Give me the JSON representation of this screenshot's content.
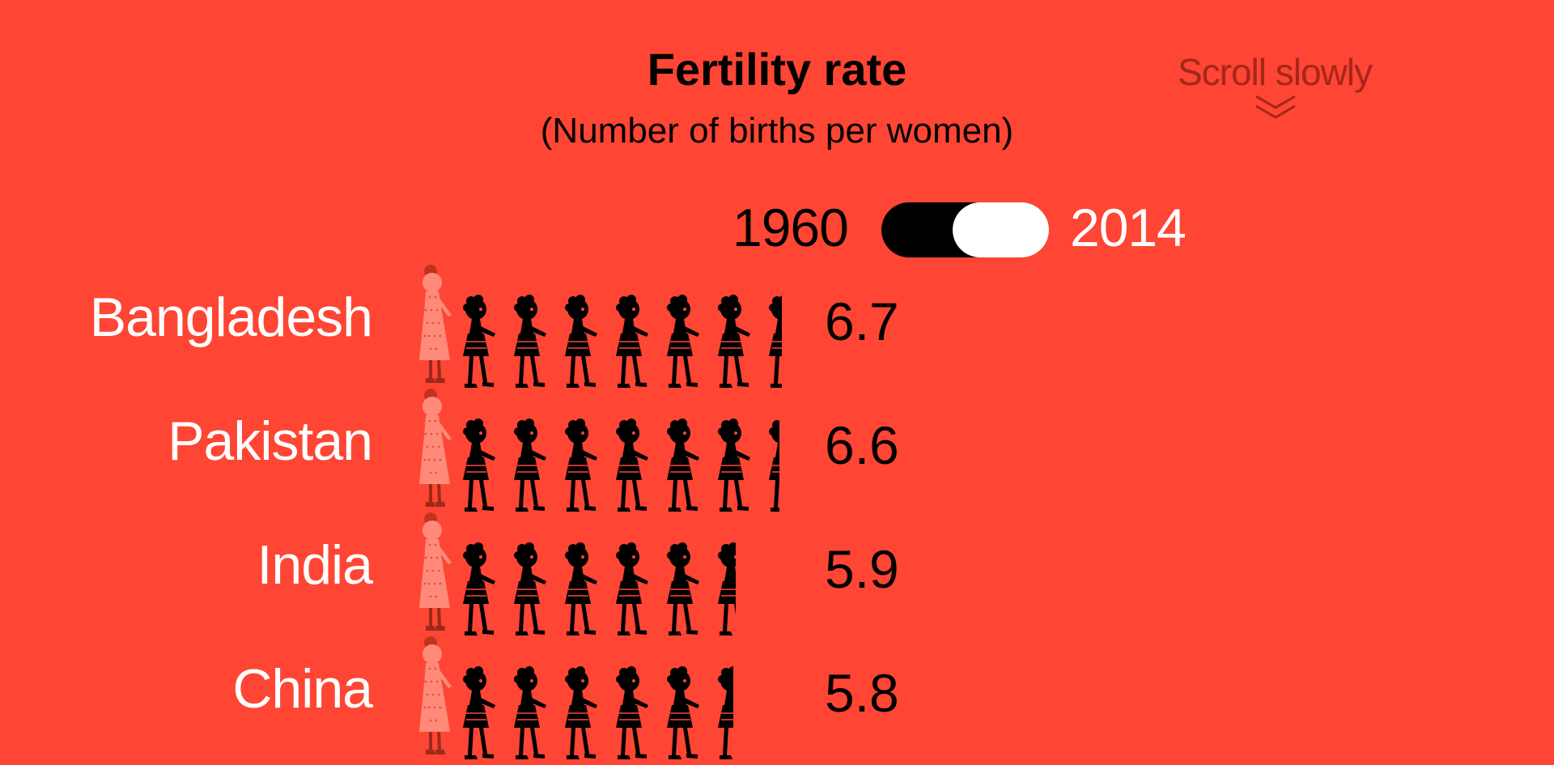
{
  "title": "Fertility rate",
  "subtitle": "(Number of births per women)",
  "scroll_hint": "Scroll slowly",
  "toggle": {
    "start_year": "1960",
    "end_year": "2014",
    "selected": "1960"
  },
  "colors": {
    "background": "#ff4533",
    "child": "#000000",
    "mother": "#ff8a7a",
    "country_label": "#ffffff",
    "scroll_hint": "#a4261b"
  },
  "icons": {
    "mother": "woman-icon",
    "child": "child-icon",
    "scroll": "double-chevron-down-icon"
  },
  "chart_data": {
    "type": "bar",
    "title": "Fertility rate",
    "subtitle": "(Number of births per women)",
    "year": "1960",
    "categories": [
      "Bangladesh",
      "Pakistan",
      "India",
      "China"
    ],
    "values": [
      6.7,
      6.6,
      5.9,
      5.8
    ],
    "value_labels": [
      "6.7",
      "6.6",
      "5.9",
      "5.8"
    ],
    "unit_icon": "child-icon"
  }
}
